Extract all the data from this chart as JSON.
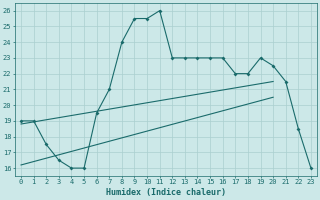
{
  "xlabel": "Humidex (Indice chaleur)",
  "bg_color": "#cce8e8",
  "line_color": "#1a6b6b",
  "grid_color": "#aacfcf",
  "xlim": [
    -0.5,
    23.5
  ],
  "ylim": [
    15.5,
    26.5
  ],
  "xticks": [
    0,
    1,
    2,
    3,
    4,
    5,
    6,
    7,
    8,
    9,
    10,
    11,
    12,
    13,
    14,
    15,
    16,
    17,
    18,
    19,
    20,
    21,
    22,
    23
  ],
  "yticks": [
    16,
    17,
    18,
    19,
    20,
    21,
    22,
    23,
    24,
    25,
    26
  ],
  "line1_x": [
    0,
    1,
    2,
    3,
    4,
    5,
    6,
    7,
    8,
    9,
    10,
    11,
    12,
    13,
    14,
    15,
    16,
    17,
    18,
    19,
    20,
    21,
    22,
    23
  ],
  "line1_y": [
    19,
    19,
    17.5,
    16.5,
    16,
    16,
    19.5,
    21,
    24,
    25.5,
    25.5,
    26,
    23,
    23,
    23,
    23,
    23,
    22,
    22,
    23,
    22.5,
    21.5,
    18.5,
    16
  ],
  "line2_x": [
    0,
    20
  ],
  "line2_y": [
    18.8,
    21.5
  ],
  "line3_x": [
    0,
    20
  ],
  "line3_y": [
    16.2,
    20.5
  ],
  "marker_style": "D",
  "marker_size": 2.0,
  "line_width": 0.8,
  "fontsize_xlabel": 6,
  "fontsize_ticks": 5
}
